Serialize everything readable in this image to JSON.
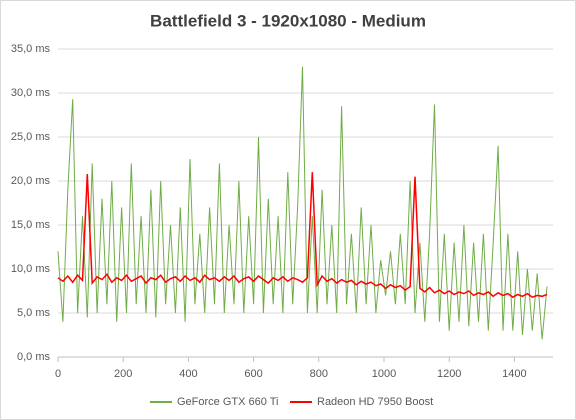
{
  "chart_data": {
    "type": "line",
    "title": "Battlefield 3 - 1920x1080 - Medium",
    "x": [
      0,
      15,
      30,
      45,
      60,
      75,
      90,
      105,
      120,
      135,
      150,
      165,
      180,
      195,
      210,
      225,
      240,
      255,
      270,
      285,
      300,
      315,
      330,
      345,
      360,
      375,
      390,
      405,
      420,
      435,
      450,
      465,
      480,
      495,
      510,
      525,
      540,
      555,
      570,
      585,
      600,
      615,
      630,
      645,
      660,
      675,
      690,
      705,
      720,
      735,
      750,
      765,
      780,
      795,
      810,
      825,
      840,
      855,
      870,
      885,
      900,
      915,
      930,
      945,
      960,
      975,
      990,
      1005,
      1020,
      1035,
      1050,
      1065,
      1080,
      1095,
      1110,
      1125,
      1140,
      1155,
      1170,
      1185,
      1200,
      1215,
      1230,
      1245,
      1260,
      1275,
      1290,
      1305,
      1320,
      1335,
      1350,
      1365,
      1380,
      1395,
      1410,
      1425,
      1440,
      1455,
      1470,
      1485,
      1500
    ],
    "series": [
      {
        "name": "GeForce GTX 660 Ti",
        "color": "#70ad47",
        "values": [
          12,
          4,
          19,
          29.3,
          5,
          16,
          4.5,
          22,
          5,
          18,
          6,
          20,
          4,
          17,
          5,
          22,
          6,
          16,
          5,
          19,
          4.5,
          20,
          6,
          15,
          5,
          17,
          4,
          22.5,
          6,
          14,
          5,
          17,
          6,
          22,
          5,
          15,
          6,
          20,
          5,
          16,
          6,
          25,
          5,
          18,
          6,
          16,
          5,
          21,
          6,
          17,
          33,
          5,
          16,
          5,
          19,
          6,
          15,
          5,
          28.5,
          6,
          14,
          5,
          17,
          6,
          15,
          5,
          11,
          7,
          12,
          6,
          14,
          6,
          20,
          5,
          13,
          4,
          14,
          28.7,
          4,
          14,
          3,
          13,
          4,
          15,
          3.5,
          13,
          4,
          14,
          3,
          13,
          24,
          3,
          14,
          3,
          12,
          2.5,
          10,
          3,
          9.5,
          2,
          8
        ]
      },
      {
        "name": "Radeon HD 7950 Boost",
        "color": "#ff0000",
        "values": [
          9,
          8.6,
          9.2,
          8.5,
          9.3,
          8.7,
          20.8,
          8.4,
          9.1,
          8.8,
          9.4,
          8.5,
          9,
          8.7,
          9.3,
          8.6,
          8.9,
          9.2,
          8.4,
          9,
          8.8,
          9.3,
          8.5,
          8.9,
          9.1,
          8.6,
          9.2,
          8.7,
          9,
          8.5,
          9.3,
          8.8,
          9,
          8.6,
          9.1,
          8.7,
          9.2,
          8.5,
          8.9,
          9.1,
          8.6,
          9.2,
          8.8,
          8.4,
          9,
          8.7,
          9.1,
          8.6,
          9,
          8.8,
          8.5,
          9,
          21,
          8.2,
          9.2,
          8.6,
          8.9,
          8.4,
          8.8,
          8.5,
          8.7,
          8.2,
          8.6,
          8.3,
          8.5,
          8.1,
          8.3,
          7.8,
          8.2,
          7.9,
          8.1,
          7.6,
          8,
          20.5,
          7.8,
          7.4,
          7.9,
          7.3,
          7.6,
          7.2,
          7.5,
          7.1,
          7.4,
          7.2,
          7.5,
          7,
          7.3,
          7.1,
          7.4,
          6.9,
          7.3,
          7,
          7.2,
          6.8,
          7.1,
          6.9,
          7.2,
          6.8,
          7,
          6.9,
          7.1
        ]
      }
    ],
    "xlim": [
      0,
      1500
    ],
    "xticks": [
      0,
      200,
      400,
      600,
      800,
      1000,
      1200,
      1400
    ],
    "ylim": [
      0,
      35
    ],
    "yticks": [
      {
        "value": 0,
        "label": "0,0 ms"
      },
      {
        "value": 5,
        "label": "5,0 ms"
      },
      {
        "value": 10,
        "label": "10,0 ms"
      },
      {
        "value": 15,
        "label": "15,0 ms"
      },
      {
        "value": 20,
        "label": "20,0 ms"
      },
      {
        "value": 25,
        "label": "25,0 ms"
      },
      {
        "value": 30,
        "label": "30,0 ms"
      },
      {
        "value": 35,
        "label": "35,0 ms"
      }
    ],
    "grid": true,
    "legend": "bottom"
  }
}
